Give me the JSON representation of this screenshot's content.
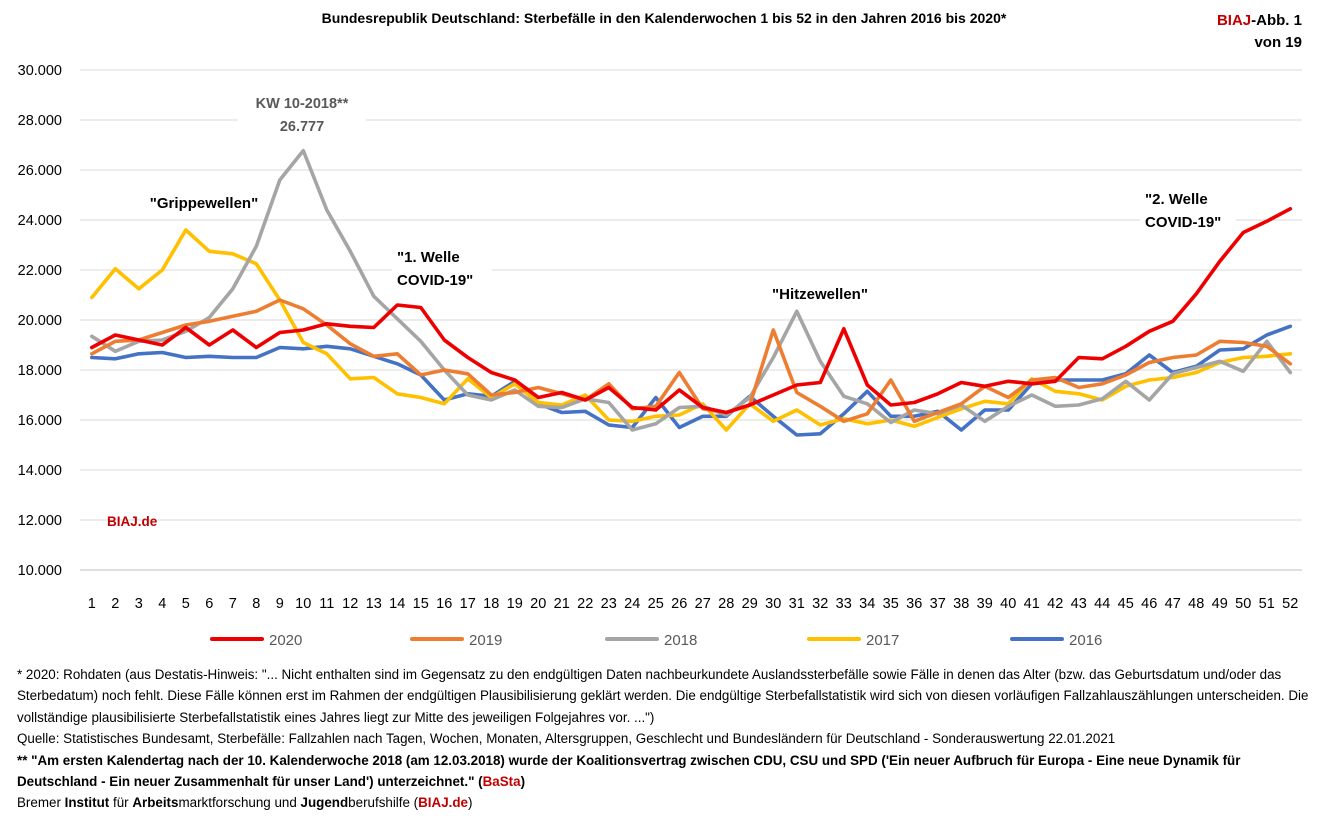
{
  "header": {
    "title": "Bundesrepublik Deutschland: Sterbefälle in den Kalenderwochen 1 bis 52 in den Jahren 2016 bis 2020*",
    "badge_brand": "BIAJ",
    "badge_rest": "-Abb. 1",
    "badge_line2": "von 19"
  },
  "colors": {
    "2020": "#ee0000",
    "2019": "#ed7d31",
    "2018": "#a5a5a5",
    "2017": "#ffc000",
    "2016": "#4472c4",
    "accent": "#c00000"
  },
  "chart_data": {
    "type": "line",
    "title": "Bundesrepublik Deutschland: Sterbefälle in den Kalenderwochen 1 bis 52 in den Jahren 2016 bis 2020*",
    "xlabel": "",
    "ylabel": "",
    "ylim": [
      10000,
      30000
    ],
    "yticks": [
      10000,
      12000,
      14000,
      16000,
      18000,
      20000,
      22000,
      24000,
      26000,
      28000,
      30000
    ],
    "ytick_labels": [
      "10.000",
      "12.000",
      "14.000",
      "16.000",
      "18.000",
      "20.000",
      "22.000",
      "24.000",
      "26.000",
      "28.000",
      "30.000"
    ],
    "categories": [
      "1",
      "2",
      "3",
      "4",
      "5",
      "6",
      "7",
      "8",
      "9",
      "10",
      "11",
      "12",
      "13",
      "14",
      "15",
      "16",
      "17",
      "18",
      "19",
      "20",
      "21",
      "22",
      "23",
      "24",
      "25",
      "26",
      "27",
      "28",
      "29",
      "30",
      "31",
      "32",
      "33",
      "34",
      "35",
      "36",
      "37",
      "38",
      "39",
      "40",
      "41",
      "42",
      "43",
      "44",
      "45",
      "46",
      "47",
      "48",
      "49",
      "50",
      "51",
      "52"
    ],
    "grid": true,
    "legend": "bottom",
    "series": [
      {
        "name": "2020",
        "values": [
          18900,
          19400,
          19200,
          19000,
          19700,
          19000,
          19600,
          18900,
          19500,
          19600,
          19850,
          19750,
          19700,
          20600,
          20500,
          19200,
          18500,
          17900,
          17600,
          16900,
          17100,
          16800,
          17300,
          16500,
          16400,
          17200,
          16500,
          16300,
          16600,
          17000,
          17400,
          17500,
          19650,
          17400,
          16600,
          16700,
          17050,
          17500,
          17350,
          17550,
          17450,
          17550,
          18500,
          18450,
          18950,
          19550,
          19950,
          21050,
          22350,
          23500,
          23950,
          24450
        ]
      },
      {
        "name": "2019",
        "values": [
          18650,
          19150,
          19200,
          19500,
          19800,
          19950,
          20150,
          20350,
          20800,
          20450,
          19800,
          19050,
          18550,
          18650,
          17800,
          18000,
          17850,
          17000,
          17100,
          17300,
          17050,
          16800,
          17450,
          16450,
          16550,
          17900,
          16450,
          16300,
          16600,
          19600,
          17100,
          16550,
          15950,
          16250,
          17600,
          15950,
          16300,
          16650,
          17350,
          16900,
          17600,
          17700,
          17300,
          17450,
          17800,
          18300,
          18500,
          18600,
          19150,
          19100,
          18950,
          18250
        ]
      },
      {
        "name": "2018",
        "values": [
          19350,
          18750,
          19150,
          19200,
          19550,
          20100,
          21250,
          22950,
          25600,
          26777,
          24400,
          22750,
          20950,
          20050,
          19150,
          18000,
          17000,
          16800,
          17200,
          16550,
          16500,
          16850,
          16700,
          15600,
          15850,
          16500,
          16550,
          16200,
          16900,
          18500,
          20350,
          18350,
          16950,
          16650,
          15900,
          16400,
          16250,
          16600,
          15950,
          16550,
          17000,
          16550,
          16600,
          16850,
          17550,
          16800,
          17850,
          18100,
          18350,
          17950,
          19150,
          17900
        ]
      },
      {
        "name": "2017",
        "values": [
          20900,
          22050,
          21250,
          22000,
          23600,
          22750,
          22650,
          22250,
          20800,
          19100,
          18650,
          17650,
          17700,
          17050,
          16900,
          16650,
          17650,
          16900,
          17450,
          16700,
          16600,
          17000,
          16000,
          15950,
          16150,
          16200,
          16650,
          15600,
          16650,
          15950,
          16400,
          15800,
          16050,
          15850,
          16000,
          15750,
          16100,
          16450,
          16750,
          16650,
          17650,
          17150,
          17050,
          16800,
          17350,
          17600,
          17700,
          17900,
          18300,
          18500,
          18550,
          18650
        ]
      },
      {
        "name": "2016",
        "values": [
          18500,
          18450,
          18650,
          18700,
          18500,
          18550,
          18500,
          18500,
          18900,
          18850,
          18950,
          18850,
          18550,
          18250,
          17800,
          16800,
          17050,
          16950,
          17550,
          16650,
          16300,
          16350,
          15800,
          15700,
          16900,
          15700,
          16150,
          16150,
          16950,
          16150,
          15400,
          15450,
          16250,
          17150,
          16150,
          16150,
          16350,
          15600,
          16400,
          16400,
          17450,
          17600,
          17600,
          17600,
          17850,
          18600,
          17900,
          18150,
          18800,
          18850,
          19400,
          19750
        ]
      }
    ],
    "annotations": [
      {
        "text_line1": "KW 10-2018**",
        "text_line2": "26.777",
        "week": 10
      },
      {
        "text_line1": "\"Grippewellen\""
      },
      {
        "text_line1": "\"1. Welle",
        "text_line2": "COVID-19\""
      },
      {
        "text_line1": "\"Hitzewellen\""
      },
      {
        "text_line1": "\"2. Welle",
        "text_line2": "COVID-19\""
      }
    ],
    "watermark": "BIAJ.de"
  },
  "footnotes": {
    "note1": "* 2020: Rohdaten (aus Destatis-Hinweis: \"... Nicht enthalten sind im Gegensatz zu den endgültigen Daten nachbeurkundete Auslandssterbefälle sowie Fälle in denen das Alter (bzw. das Geburtsdatum und/oder das Sterbedatum) noch fehlt. Diese Fälle können erst im Rahmen der endgültigen Plausibilisierung geklärt werden. Die endgültige Sterbefallstatistik wird sich von diesen vorläufigen Fallzahlauszählungen unterscheiden. Die vollständige plausibilisierte Sterbefallstatistik eines Jahres liegt zur Mitte des jeweiligen Folgejahres vor. ...\")",
    "source": "Quelle: Statistisches Bundesamt, Sterbefälle: Fallzahlen nach Tagen, Wochen, Monaten, Altersgruppen, Geschlecht und Bundesländern für Deutschland - Sonderauswertung 22.01.2021",
    "note2_main": "** \"Am ersten Kalendertag nach der 10. Kalenderwoche 2018 (am 12.03.2018) wurde der Koalitionsvertrag zwischen CDU, CSU und SPD ('Ein neuer Aufbruch für Europa - Eine neue Dynamik für Deutschland - Ein neuer Zusammenhalt für unser Land') unterzeichnet.\" (",
    "note2_brand": "BaSta",
    "note2_end": ")",
    "inst_p1": "Bremer ",
    "inst_b1": "Institut",
    "inst_p2": " für ",
    "inst_b2": "Arbeits",
    "inst_p3": "marktforschung und ",
    "inst_b3": "Jugend",
    "inst_p4": "berufshilfe (",
    "inst_brand": "BIAJ.de",
    "inst_p5": ")"
  }
}
